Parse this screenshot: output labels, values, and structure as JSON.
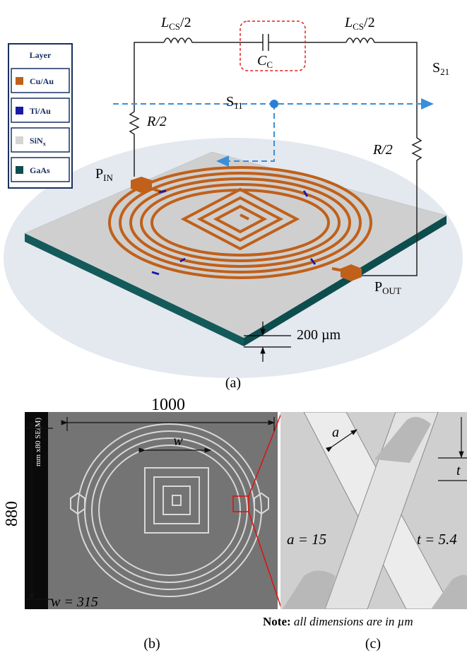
{
  "panel_a": {
    "legend": {
      "title": "Layer",
      "items": [
        {
          "label": "Cu/Au",
          "color": "#c0601a"
        },
        {
          "label": "Ti/Au",
          "color": "#1a1aa8"
        },
        {
          "label": {
            "main": "SiN",
            "sub": "x"
          },
          "color": "#d4d4d4"
        },
        {
          "label": "GaAs",
          "color": "#0e4d4d"
        }
      ]
    },
    "inductor_left": {
      "main": "L",
      "sub": "CS",
      "rest": "/2"
    },
    "inductor_right": {
      "main": "L",
      "sub": "CS",
      "rest": "/2"
    },
    "capacitor": {
      "main": "C",
      "sub": "C"
    },
    "s21": {
      "main": "S",
      "sub": "21"
    },
    "s11": {
      "main": "S",
      "sub": "11"
    },
    "resistor_left": "R/2",
    "resistor_right": "R/2",
    "port_in": {
      "main": "P",
      "sub": "IN"
    },
    "port_out": {
      "main": "P",
      "sub": "OUT"
    },
    "thickness": "200 µm",
    "caption": "(a)"
  },
  "panel_b": {
    "width_label": "1000",
    "height_label": "880",
    "w_label": "w",
    "w_value": "w = 315",
    "sem_info": "mm x80 SE(M)",
    "caption": "(b)"
  },
  "panel_c": {
    "a_label": "a",
    "t_label": "t",
    "a_value": "a = 15",
    "t_value": "t = 5.4",
    "caption": "(c)"
  },
  "note": {
    "bold": "Note:",
    "text": " all dimensions are in µm"
  }
}
